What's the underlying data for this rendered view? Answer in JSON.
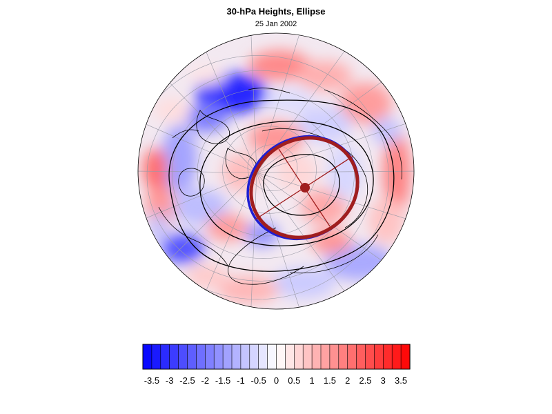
{
  "header": {
    "title": "30-hPa Heights, Ellipse",
    "subtitle": "25 Jan 2002"
  },
  "colorbar": {
    "tick_labels": [
      "-3.5",
      "-3",
      "-2.5",
      "-2",
      "-1.5",
      "-1",
      "-0.5",
      "0",
      "0.5",
      "1",
      "1.5",
      "2",
      "2.5",
      "3",
      "3.5"
    ],
    "min": -3.75,
    "max": 3.75,
    "levels": 30,
    "negative_color": "#0000ff",
    "positive_color": "#ff0000",
    "neutral_color": "#ffffff"
  },
  "map": {
    "projection": "orthographic, north polar view",
    "field": "standardized 30-hPa height anomaly",
    "ellipse_color": "#a01e1e",
    "ellipse_secondary_color": "#1e1ed2",
    "contour_color": "#000000",
    "gridline_color": "#9a9aa6"
  }
}
